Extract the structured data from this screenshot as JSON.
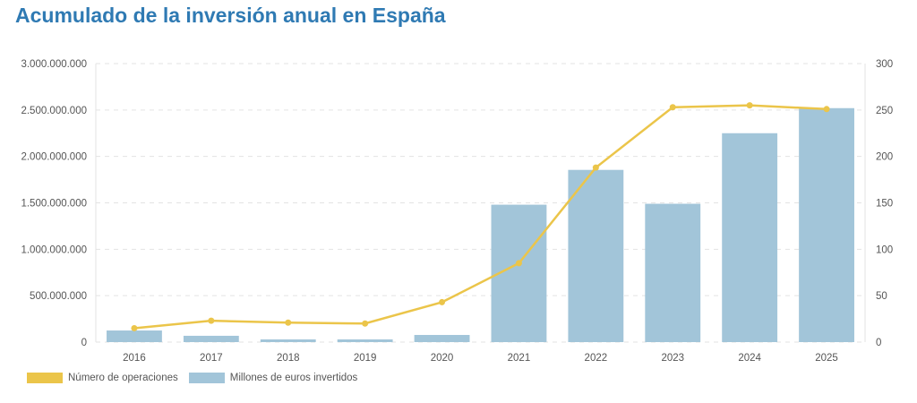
{
  "chart_data": {
    "type": "bar",
    "title": "Acumulado de la inversión anual en España",
    "categories": [
      "2016",
      "2017",
      "2018",
      "2019",
      "2020",
      "2021",
      "2022",
      "2023",
      "2024",
      "2025"
    ],
    "series": [
      {
        "name": "Número de operaciones",
        "type": "line",
        "axis": "right",
        "color": "#ebc54a",
        "values": [
          15,
          23,
          21,
          20,
          43,
          85,
          188,
          253,
          255,
          251
        ]
      },
      {
        "name": "Millones de euros invertidos",
        "type": "bar",
        "axis": "left",
        "color": "#a2c5d9",
        "values": [
          125000000,
          68000000,
          29000000,
          29000000,
          77000000,
          1480000000,
          1855000000,
          1490000000,
          2250000000,
          2520000000
        ]
      }
    ],
    "y_left": {
      "ylim": [
        0,
        3000000000
      ],
      "ticks": [
        "0",
        "500.000.000",
        "1.000.000.000",
        "1.500.000.000",
        "2.000.000.000",
        "2.500.000.000",
        "3.000.000.000"
      ]
    },
    "y_right": {
      "ylim": [
        0,
        300
      ],
      "ticks": [
        "0",
        "50",
        "100",
        "150",
        "200",
        "250",
        "300"
      ]
    },
    "grid": true,
    "legend": "bottom-left"
  }
}
